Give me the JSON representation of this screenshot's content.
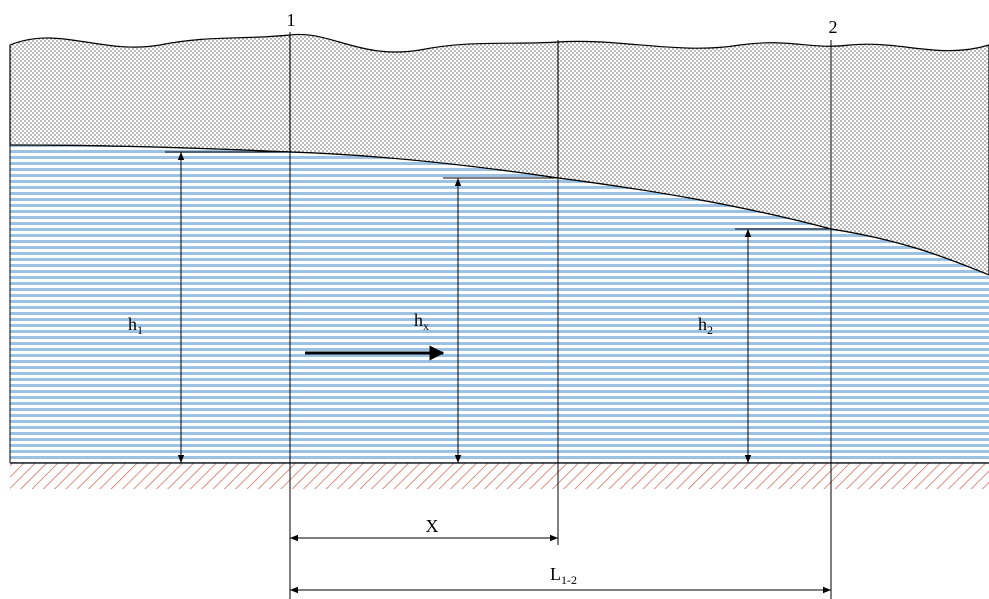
{
  "sections": [
    {
      "label": "1"
    },
    {
      "label": "2"
    }
  ],
  "depths": [
    {
      "symbol": "h",
      "subscript": "1"
    },
    {
      "symbol": "h",
      "subscript": "x"
    },
    {
      "symbol": "h",
      "subscript": "2"
    }
  ],
  "distances": [
    {
      "symbol": "X"
    },
    {
      "symbol": "L",
      "subscript": "1-2"
    }
  ]
}
